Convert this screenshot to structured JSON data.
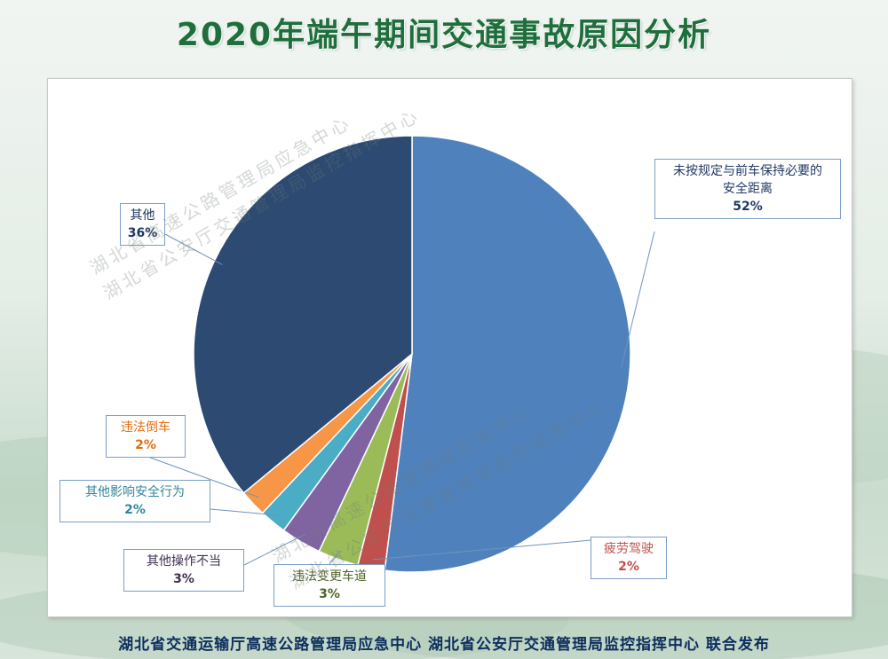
{
  "page": {
    "title": "2020年端午期间交通事故原因分析",
    "footer": "湖北省交通运输厅高速公路管理局应急中心 湖北省公安厅交通管理局监控指挥中心 联合发布",
    "watermarks": [
      "湖北省高速公路管理局应急中心",
      "湖北省公安厅交通管理局监控指挥中心"
    ]
  },
  "chart_data": {
    "type": "pie",
    "title": "2020年端午期间交通事故原因分析",
    "slices": [
      {
        "label": "未按规定与前车保持必要的安全距离",
        "label_lines": [
          "未按规定与前车保持必要的",
          "安全距离"
        ],
        "value": 52,
        "percent_label": "52%",
        "color": "#4f81bd",
        "text_color": "#1f3864"
      },
      {
        "label": "疲劳驾驶",
        "label_lines": [
          "疲劳驾驶"
        ],
        "value": 2,
        "percent_label": "2%",
        "color": "#c0504d",
        "text_color": "#c0504d"
      },
      {
        "label": "违法变更车道",
        "label_lines": [
          "违法变更车道"
        ],
        "value": 3,
        "percent_label": "3%",
        "color": "#9bbb59",
        "text_color": "#4f6228"
      },
      {
        "label": "其他操作不当",
        "label_lines": [
          "其他操作不当"
        ],
        "value": 3,
        "percent_label": "3%",
        "color": "#8064a2",
        "text_color": "#3f3151"
      },
      {
        "label": "其他影响安全行为",
        "label_lines": [
          "其他影响安全行为"
        ],
        "value": 2,
        "percent_label": "2%",
        "color": "#4bacc6",
        "text_color": "#31859c"
      },
      {
        "label": "违法倒车",
        "label_lines": [
          "违法倒车"
        ],
        "value": 2,
        "percent_label": "2%",
        "color": "#f79646",
        "text_color": "#e46c0a"
      },
      {
        "label": "其他",
        "label_lines": [
          "其他"
        ],
        "value": 36,
        "percent_label": "36%",
        "color": "#2c4a72",
        "text_color": "#1f3864"
      }
    ],
    "start": "12 o'clock",
    "direction": "clockwise",
    "legend": "none"
  }
}
